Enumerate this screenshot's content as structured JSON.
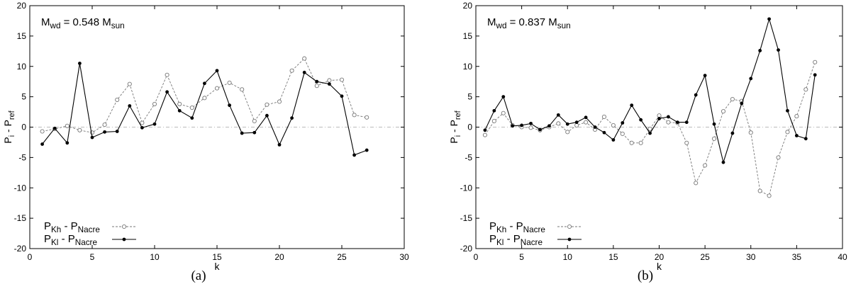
{
  "chart_data": [
    {
      "type": "line",
      "panel_label": "(a)",
      "annotation": {
        "main": "M",
        "sub1": "wd",
        "mid": " = 0.548 M",
        "sub2": "sun"
      },
      "xlabel": "k",
      "ylabel": {
        "main": "P",
        "sub1": "i",
        "mid": " - P",
        "sub2": "ref"
      },
      "xlim": [
        0,
        30
      ],
      "ylim": [
        -20,
        20
      ],
      "xticks": [
        0,
        5,
        10,
        15,
        20,
        25,
        30
      ],
      "yticks": [
        -20,
        -15,
        -10,
        -5,
        0,
        5,
        10,
        15,
        20
      ],
      "grid": false,
      "legend_position": "bottom-left",
      "series": [
        {
          "name": {
            "main": "P",
            "sub1": "Kh",
            "mid": " - P",
            "sub2": "Nacre"
          },
          "style": "dashed-open-circle",
          "color": "#777777",
          "x": [
            1,
            2,
            3,
            4,
            5,
            6,
            7,
            8,
            9,
            10,
            11,
            12,
            13,
            14,
            15,
            16,
            17,
            18,
            19,
            20,
            21,
            22,
            23,
            24,
            25,
            26,
            27
          ],
          "values": [
            -0.7,
            -0.3,
            0.2,
            -0.5,
            -0.9,
            0.4,
            4.5,
            7.1,
            0.7,
            3.8,
            8.6,
            3.8,
            3.2,
            4.8,
            6.4,
            7.3,
            6.2,
            1.0,
            3.7,
            4.2,
            9.3,
            11.3,
            6.8,
            7.7,
            7.8,
            2.0,
            1.6
          ]
        },
        {
          "name": {
            "main": "P",
            "sub1": "Kl",
            "mid": " - P",
            "sub2": "Nacre"
          },
          "style": "solid-filled-circle",
          "color": "#000000",
          "x": [
            1,
            2,
            3,
            4,
            5,
            6,
            7,
            8,
            9,
            10,
            11,
            12,
            13,
            14,
            15,
            16,
            17,
            18,
            19,
            20,
            21,
            22,
            23,
            24,
            25,
            26,
            27
          ],
          "values": [
            -2.8,
            -0.2,
            -2.6,
            10.5,
            -1.7,
            -0.8,
            -0.7,
            3.5,
            -0.1,
            0.5,
            5.8,
            2.7,
            1.5,
            7.2,
            9.3,
            3.6,
            -1.0,
            -0.9,
            1.9,
            -2.9,
            1.5,
            9.0,
            7.5,
            7.1,
            5.1,
            -4.6,
            -3.8
          ]
        }
      ]
    },
    {
      "type": "line",
      "panel_label": "(b)",
      "annotation": {
        "main": "M",
        "sub1": "wd",
        "mid": " = 0.837 M",
        "sub2": "sun"
      },
      "xlabel": "k",
      "ylabel": {
        "main": "P",
        "sub1": "i",
        "mid": " - P",
        "sub2": "ref"
      },
      "xlim": [
        0,
        40
      ],
      "ylim": [
        -20,
        20
      ],
      "xticks": [
        0,
        5,
        10,
        15,
        20,
        25,
        30,
        35,
        40
      ],
      "yticks": [
        -20,
        -15,
        -10,
        -5,
        0,
        5,
        10,
        15,
        20
      ],
      "grid": false,
      "legend_position": "bottom-left",
      "series": [
        {
          "name": {
            "main": "P",
            "sub1": "Kh",
            "mid": " - P",
            "sub2": "Nacre"
          },
          "style": "dashed-open-circle",
          "color": "#777777",
          "x": [
            1,
            2,
            3,
            4,
            5,
            6,
            7,
            8,
            9,
            10,
            11,
            12,
            13,
            14,
            15,
            16,
            17,
            18,
            19,
            20,
            21,
            22,
            23,
            24,
            25,
            26,
            27,
            28,
            29,
            30,
            31,
            32,
            33,
            34,
            35,
            36,
            37
          ],
          "values": [
            -1.3,
            1.0,
            2.3,
            0.3,
            0.0,
            -0.1,
            -0.5,
            0.0,
            0.6,
            -0.8,
            0.3,
            0.8,
            -0.4,
            1.7,
            0.3,
            -1.1,
            -2.6,
            -2.6,
            -0.3,
            1.9,
            0.8,
            0.7,
            -2.6,
            -9.2,
            -6.3,
            -1.9,
            2.6,
            4.6,
            4.3,
            -0.9,
            -10.5,
            -11.3,
            -5.0,
            -0.8,
            1.8,
            6.2,
            10.7
          ]
        },
        {
          "name": {
            "main": "P",
            "sub1": "Kl",
            "mid": " - P",
            "sub2": "Nacre"
          },
          "style": "solid-filled-circle",
          "color": "#000000",
          "x": [
            1,
            2,
            3,
            4,
            5,
            6,
            7,
            8,
            9,
            10,
            11,
            12,
            13,
            14,
            15,
            16,
            17,
            18,
            19,
            20,
            21,
            22,
            23,
            24,
            25,
            26,
            27,
            28,
            29,
            30,
            31,
            32,
            33,
            34,
            35,
            36,
            37
          ],
          "values": [
            -0.5,
            2.7,
            5.0,
            0.2,
            0.3,
            0.6,
            -0.4,
            0.2,
            2.0,
            0.5,
            0.8,
            1.6,
            0.0,
            -0.9,
            -2.1,
            0.7,
            3.6,
            1.2,
            -1.0,
            1.4,
            1.7,
            0.8,
            0.8,
            5.3,
            8.5,
            0.5,
            -5.8,
            -1.0,
            3.9,
            8.0,
            12.6,
            17.8,
            12.7,
            2.7,
            -1.4,
            -1.9,
            8.6
          ]
        }
      ]
    }
  ]
}
